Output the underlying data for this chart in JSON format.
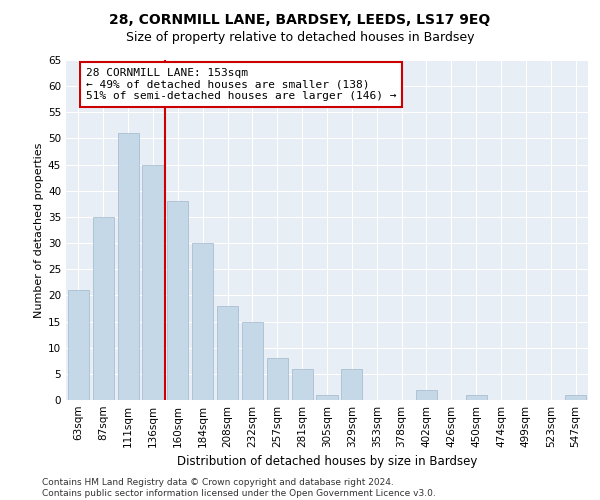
{
  "title1": "28, CORNMILL LANE, BARDSEY, LEEDS, LS17 9EQ",
  "title2": "Size of property relative to detached houses in Bardsey",
  "xlabel": "Distribution of detached houses by size in Bardsey",
  "ylabel": "Number of detached properties",
  "categories": [
    "63sqm",
    "87sqm",
    "111sqm",
    "136sqm",
    "160sqm",
    "184sqm",
    "208sqm",
    "232sqm",
    "257sqm",
    "281sqm",
    "305sqm",
    "329sqm",
    "353sqm",
    "378sqm",
    "402sqm",
    "426sqm",
    "450sqm",
    "474sqm",
    "499sqm",
    "523sqm",
    "547sqm"
  ],
  "values": [
    21,
    35,
    51,
    45,
    38,
    30,
    18,
    15,
    8,
    6,
    1,
    6,
    0,
    0,
    2,
    0,
    1,
    0,
    0,
    0,
    1
  ],
  "bar_color": "#c5d8e8",
  "bar_edge_color": "#a0b8cc",
  "vline_x": 3.5,
  "vline_color": "#cc0000",
  "annotation_text": "28 CORNMILL LANE: 153sqm\n← 49% of detached houses are smaller (138)\n51% of semi-detached houses are larger (146) →",
  "annotation_box_color": "#ffffff",
  "annotation_box_edge": "#cc0000",
  "ylim": [
    0,
    65
  ],
  "yticks": [
    0,
    5,
    10,
    15,
    20,
    25,
    30,
    35,
    40,
    45,
    50,
    55,
    60,
    65
  ],
  "background_color": "#e8eef5",
  "footer_text": "Contains HM Land Registry data © Crown copyright and database right 2024.\nContains public sector information licensed under the Open Government Licence v3.0.",
  "title1_fontsize": 10,
  "title2_fontsize": 9,
  "xlabel_fontsize": 8.5,
  "ylabel_fontsize": 8,
  "tick_fontsize": 7.5,
  "annotation_fontsize": 8,
  "footer_fontsize": 6.5
}
